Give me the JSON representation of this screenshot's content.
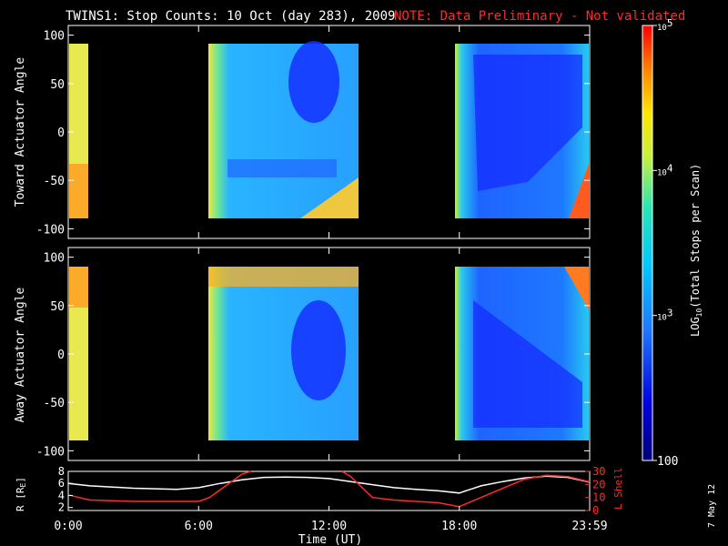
{
  "title": "TWINS1: Stop Counts: 10 Oct (day 283), 2009",
  "note": "NOTE: Data Preliminary - Not validated",
  "footer_date": "7 May 12",
  "chart_data": [
    {
      "type": "heatmap",
      "name": "toward",
      "ylabel": "Toward Actuator Angle",
      "ylim": [
        -110,
        110
      ],
      "yticks": [
        100,
        50,
        0,
        -50,
        -100
      ],
      "xlim": [
        0,
        24
      ],
      "data_y_range": [
        -90,
        90
      ],
      "data_segments": [
        [
          0,
          0.45
        ],
        [
          6.2,
          13.5
        ],
        [
          18.0,
          23.98
        ]
      ]
    },
    {
      "type": "heatmap",
      "name": "away",
      "ylabel": "Away Actuator Angle",
      "ylim": [
        -110,
        110
      ],
      "yticks": [
        100,
        50,
        0,
        -50,
        -100
      ],
      "xlim": [
        0,
        24
      ],
      "data_y_range": [
        -90,
        90
      ],
      "data_segments": [
        [
          0,
          0.45
        ],
        [
          6.2,
          13.5
        ],
        [
          18.0,
          23.98
        ]
      ]
    },
    {
      "type": "line",
      "name": "orbit",
      "xlabel": "Time (UT)",
      "xticks": [
        "0:00",
        "6:00",
        "12:00",
        "18:00",
        "23:59"
      ],
      "xlim": [
        0,
        24
      ],
      "ylabel_left": "R [R",
      "ylabel_left_sub": "E",
      "ylim_left": [
        1.5,
        8
      ],
      "yticks_left": [
        8,
        6,
        4,
        2
      ],
      "ylabel_right": "L Shell",
      "ylim_right": [
        0,
        30
      ],
      "yticks_right": [
        30,
        20,
        10,
        0
      ],
      "series": [
        {
          "axis": "left",
          "color": "#ffffff",
          "x": [
            0,
            1,
            3,
            5,
            6,
            7,
            8,
            9,
            10,
            11,
            12,
            13,
            14,
            15,
            16,
            17,
            18,
            18.5,
            19,
            20,
            21,
            22,
            23,
            24
          ],
          "y": [
            6.0,
            5.6,
            5.2,
            5.0,
            5.3,
            6.0,
            6.6,
            7.0,
            7.05,
            7.0,
            6.8,
            6.3,
            5.8,
            5.3,
            5.0,
            4.8,
            4.4,
            5.0,
            5.6,
            6.3,
            6.9,
            7.2,
            7.0,
            6.2
          ]
        },
        {
          "axis": "right",
          "color": "#ff2a2a",
          "x": [
            0,
            0.5,
            1,
            3,
            5,
            6,
            6.5,
            7,
            7.5,
            8,
            8.4
          ],
          "y": [
            12,
            10,
            8,
            7,
            7,
            7,
            10,
            16,
            22,
            28,
            33
          ]
        },
        {
          "axis": "right",
          "color": "#ff2a2a",
          "x": [
            12.6,
            13,
            13.5,
            14,
            15,
            16,
            17,
            18,
            19,
            20,
            21,
            22,
            23,
            23.5,
            24
          ],
          "y": [
            33,
            26,
            18,
            10,
            8,
            7,
            6,
            3,
            10,
            17,
            24,
            27,
            26,
            24,
            22
          ]
        }
      ]
    },
    {
      "type": "colorbar",
      "label_prefix": "LOG",
      "label_sub": "10",
      "label_suffix": "(Total Stops per Scan)",
      "range": [
        100,
        100000
      ],
      "tick_labels": [
        {
          "base": "10",
          "exp": "5",
          "value": 100000
        },
        {
          "base": "10",
          "exp": "4",
          "value": 10000
        },
        {
          "base": "10",
          "exp": "3",
          "value": 1000
        },
        {
          "base": "100",
          "exp": "",
          "value": 100
        }
      ]
    }
  ]
}
